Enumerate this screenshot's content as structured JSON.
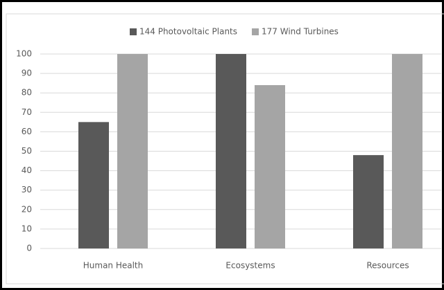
{
  "chart_data": {
    "type": "bar",
    "categories": [
      "Human Health",
      "Ecosystems",
      "Resources"
    ],
    "series": [
      {
        "name": "144 Photovoltaic Plants",
        "color": "#595959",
        "values": [
          65,
          100,
          48
        ]
      },
      {
        "name": "177 Wind Turbines",
        "color": "#a5a5a5",
        "values": [
          100,
          84,
          100
        ]
      }
    ],
    "ylim": [
      0,
      100
    ],
    "yticks": [
      0,
      10,
      20,
      30,
      40,
      50,
      60,
      70,
      80,
      90,
      100
    ],
    "grid": true,
    "legend": "top"
  }
}
